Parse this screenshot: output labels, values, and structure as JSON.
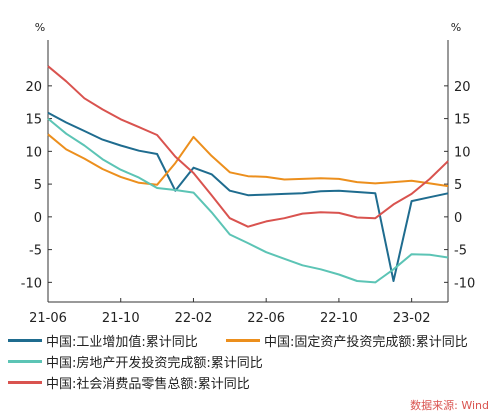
{
  "chart_data": {
    "type": "line",
    "x": [
      "21-06",
      "21-07",
      "21-08",
      "21-09",
      "21-10",
      "21-11",
      "21-12",
      "22-01",
      "22-02",
      "22-03",
      "22-04",
      "22-05",
      "22-06",
      "22-07",
      "22-08",
      "22-09",
      "22-10",
      "22-11",
      "22-12",
      "23-01",
      "23-02",
      "23-03",
      "23-04"
    ],
    "x_tick_labels": [
      "21-06",
      "21-10",
      "22-02",
      "22-06",
      "22-10",
      "23-02"
    ],
    "y_unit_left": "%",
    "y_unit_right": "%",
    "ylim": [
      -13,
      27
    ],
    "y_ticks": [
      -10,
      -5,
      0,
      5,
      10,
      15,
      20
    ],
    "grid": false,
    "series": [
      {
        "name": "中国:工业增加值:累计同比",
        "color": "#1f6c8f",
        "values": [
          15.9,
          14.4,
          13.1,
          11.8,
          10.9,
          10.1,
          9.6,
          4.0,
          7.5,
          6.5,
          4.0,
          3.3,
          3.4,
          3.5,
          3.6,
          3.9,
          4.0,
          3.8,
          3.6,
          -9.8,
          2.4,
          3.0,
          3.6
        ]
      },
      {
        "name": "中国:固定资产投资完成额:累计同比",
        "color": "#ec8f1d",
        "values": [
          12.6,
          10.3,
          8.9,
          7.3,
          6.1,
          5.2,
          4.9,
          8.2,
          12.2,
          9.3,
          6.8,
          6.2,
          6.1,
          5.7,
          5.8,
          5.9,
          5.8,
          5.3,
          5.1,
          5.3,
          5.5,
          5.1,
          4.7
        ]
      },
      {
        "name": "中国:房地产开发投资完成额:累计同比",
        "color": "#5cc4b5",
        "values": [
          15.0,
          12.7,
          10.9,
          8.8,
          7.2,
          6.0,
          4.4,
          4.1,
          3.7,
          0.7,
          -2.7,
          -4.0,
          -5.4,
          -6.4,
          -7.4,
          -8.0,
          -8.8,
          -9.8,
          -10.0,
          -8.0,
          -5.7,
          -5.8,
          -6.2
        ]
      },
      {
        "name": "中国:社会消费品零售总额:累计同比",
        "color": "#d9534f",
        "values": [
          23.0,
          20.7,
          18.1,
          16.4,
          14.9,
          13.7,
          12.5,
          9.2,
          6.7,
          3.3,
          -0.2,
          -1.5,
          -0.7,
          -0.2,
          0.5,
          0.7,
          0.6,
          -0.1,
          -0.2,
          1.9,
          3.5,
          5.8,
          8.5
        ]
      }
    ]
  },
  "source": "数据来源: Wind"
}
